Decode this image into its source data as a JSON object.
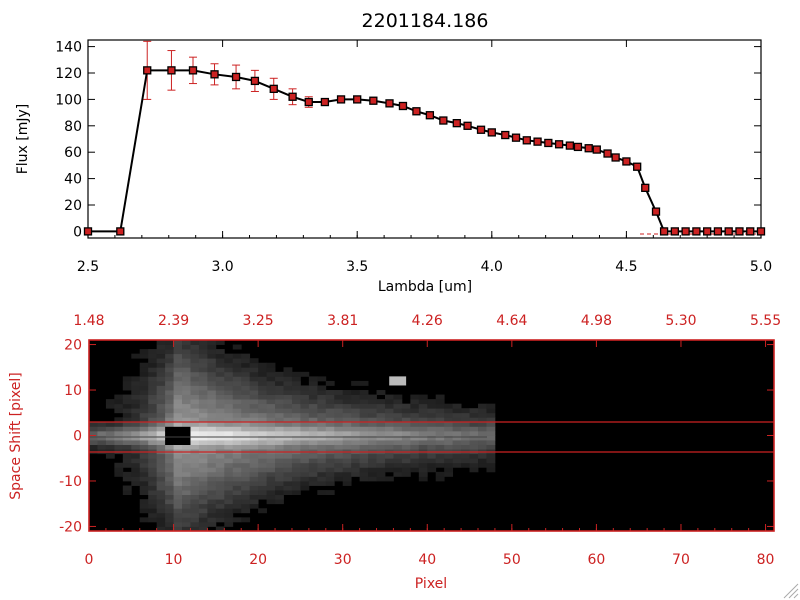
{
  "chart_data": [
    {
      "type": "line",
      "title": "2201184.186",
      "xlabel": "Lambda [um]",
      "ylabel": "Flux [mJy]",
      "xlim": [
        2.5,
        5.0
      ],
      "ylim": [
        -5,
        145
      ],
      "x_ticks": [
        "2.5",
        "3.0",
        "3.5",
        "4.0",
        "4.5",
        "5.0"
      ],
      "y_ticks": [
        "0",
        "20",
        "40",
        "60",
        "80",
        "100",
        "120",
        "140"
      ],
      "series": [
        {
          "marker": "square",
          "line_color": "#000000",
          "marker_color": "#cc2222",
          "errorbar_color": "#cc2222",
          "x": [
            2.5,
            2.62,
            2.72,
            2.81,
            2.89,
            2.97,
            3.05,
            3.12,
            3.19,
            3.26,
            3.32,
            3.38,
            3.44,
            3.5,
            3.56,
            3.62,
            3.67,
            3.72,
            3.77,
            3.82,
            3.87,
            3.91,
            3.96,
            4.0,
            4.05,
            4.09,
            4.13,
            4.17,
            4.21,
            4.25,
            4.29,
            4.32,
            4.36,
            4.39,
            4.43,
            4.46,
            4.5,
            4.54,
            4.57,
            4.61,
            4.64,
            4.68,
            4.72,
            4.76,
            4.8,
            4.84,
            4.88,
            4.92,
            4.96,
            5.0
          ],
          "y": [
            0,
            0,
            122,
            122,
            122,
            119,
            117,
            114,
            108,
            102,
            98,
            98,
            100,
            100,
            99,
            97,
            95,
            91,
            88,
            84,
            82,
            80,
            77,
            75,
            73,
            71,
            69,
            68,
            67,
            66,
            65,
            64,
            63,
            62,
            59,
            56,
            53,
            49,
            33,
            15,
            0,
            0,
            0,
            0,
            0,
            0,
            0,
            0,
            0,
            0
          ],
          "err": [
            0,
            0,
            22,
            15,
            10,
            8,
            9,
            8,
            8,
            6,
            4,
            0,
            0,
            0,
            0,
            0,
            0,
            0,
            0,
            0,
            0,
            0,
            0,
            0,
            0,
            0,
            0,
            0,
            0,
            0,
            0,
            0,
            0,
            0,
            0,
            0,
            0,
            0,
            0,
            0,
            0,
            0,
            0,
            0,
            0,
            0,
            0,
            0,
            0,
            0
          ]
        }
      ]
    },
    {
      "type": "heatmap",
      "xlabel": "Pixel",
      "ylabel": "Space Shift [pixel]",
      "xlim": [
        0,
        81
      ],
      "ylim": [
        -21,
        21
      ],
      "x_ticks": [
        "0",
        "10",
        "20",
        "30",
        "40",
        "50",
        "60",
        "70",
        "80"
      ],
      "y_ticks": [
        "-20",
        "-10",
        "0",
        "10",
        "20"
      ],
      "top_axis_ticks": [
        "1.48",
        "2.39",
        "3.25",
        "3.81",
        "4.26",
        "4.64",
        "4.98",
        "5.30",
        "5.55"
      ],
      "signal_extent_pixel": [
        0,
        47
      ],
      "peak_pixel": [
        10,
        0
      ],
      "horizontal_lines": [
        3,
        -3
      ],
      "colormap": "grayscale",
      "frame_color": "#cc2222"
    }
  ]
}
